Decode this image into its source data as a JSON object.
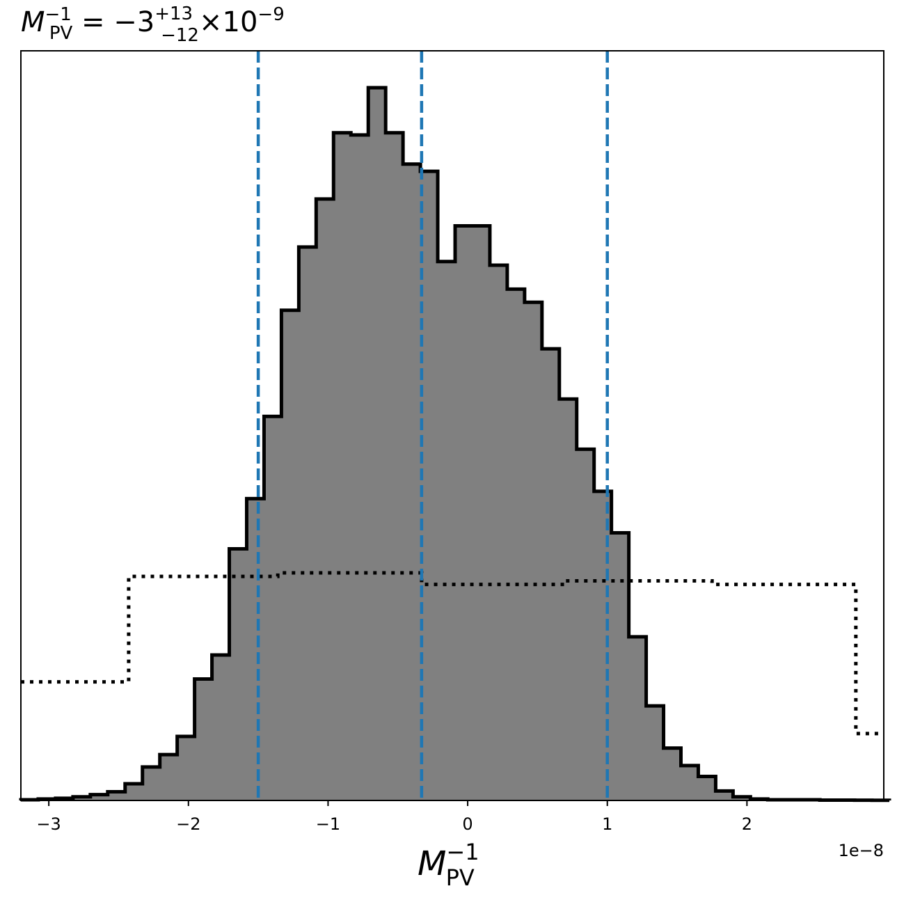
{
  "chart_data": {
    "type": "histogram",
    "title": {
      "var": "M",
      "var_sub": "PV",
      "var_sup": "−1",
      "eq": " = −3",
      "sup": "+13",
      "sub": "−12",
      "tail": "×10",
      "tail_sup": "−9"
    },
    "xlabel": {
      "var": "M",
      "sub": "PV",
      "sup": "−1"
    },
    "ylabel": "",
    "x_offset_label": "1e−8",
    "xlim": [
      -3.2e-08,
      2.98e-08
    ],
    "ylim": [
      0,
      1.0
    ],
    "x_ticks": [
      {
        "value": -3e-08,
        "label": "−3"
      },
      {
        "value": -2e-08,
        "label": "−2"
      },
      {
        "value": -1e-08,
        "label": "−1"
      },
      {
        "value": 0,
        "label": "0"
      },
      {
        "value": 1e-08,
        "label": "1"
      },
      {
        "value": 2e-08,
        "label": "2"
      }
    ],
    "grid": false,
    "colors": {
      "posterior_fill": "#808080",
      "edge": "#000000",
      "quantile_line": "#1f77b4"
    },
    "posterior": {
      "bin_start": -3.2e-08,
      "bin_width": 1.244e-09,
      "counts": [
        0.001,
        0.002,
        0.003,
        0.005,
        0.008,
        0.012,
        0.023,
        0.046,
        0.063,
        0.088,
        0.167,
        0.2,
        0.346,
        0.415,
        0.528,
        0.674,
        0.761,
        0.827,
        0.918,
        0.915,
        0.98,
        0.918,
        0.875,
        0.865,
        0.741,
        0.79,
        0.79,
        0.736,
        0.703,
        0.685,
        0.621,
        0.552,
        0.483,
        0.425,
        0.368,
        0.225,
        0.13,
        0.072,
        0.048,
        0.033,
        0.013,
        0.005,
        0.002,
        0.001,
        0.001,
        0.001,
        0.0005,
        0.0005,
        0.0003,
        0.0002
      ]
    },
    "prior": {
      "bin_edges": [
        -3.2e-08,
        -2.428e-08,
        -1.36e-08,
        -3.3e-09,
        7e-09,
        1.75e-08,
        2.78e-08,
        2.98e-08
      ],
      "heights": [
        0.163,
        0.308,
        0.313,
        0.297,
        0.302,
        0.297,
        0.092
      ]
    },
    "quantile_lines": [
      -1.5e-08,
      -3.3e-09,
      1e-08
    ]
  }
}
